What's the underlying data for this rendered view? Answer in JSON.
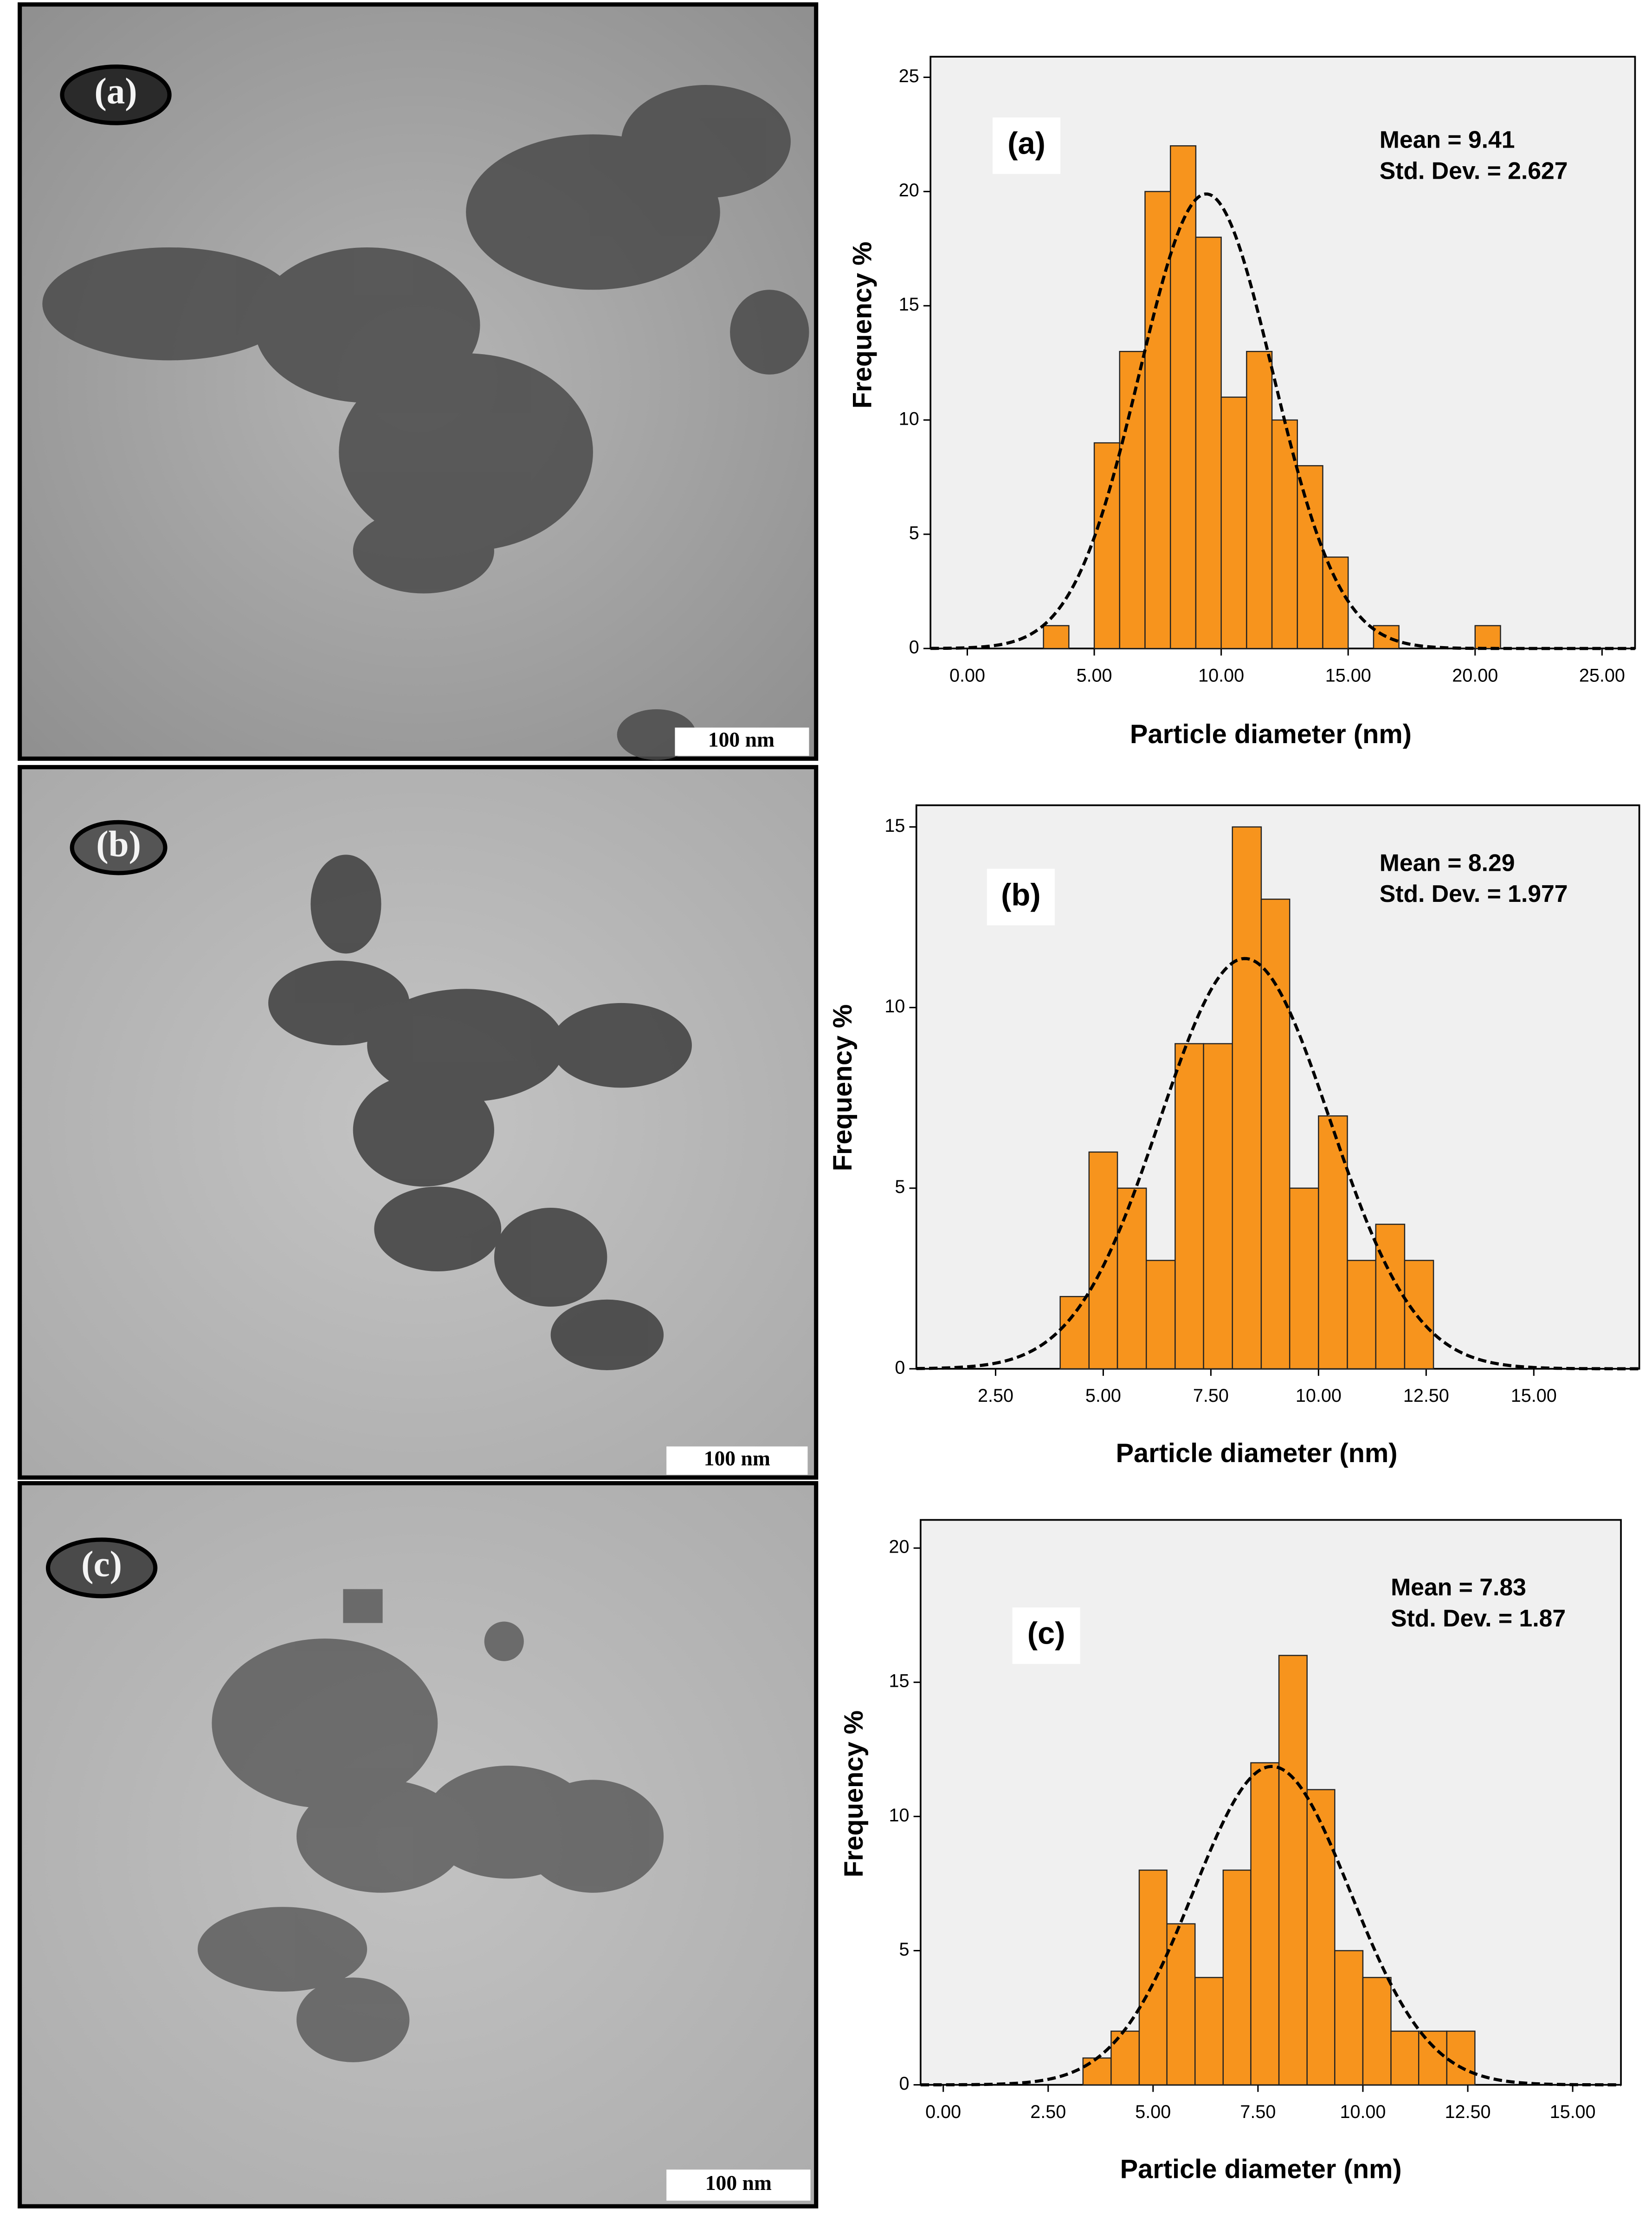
{
  "images": [
    {
      "label": "(a)",
      "scale_bar": "100 nm"
    },
    {
      "label": "(b)",
      "scale_bar": "100 nm"
    },
    {
      "label": "(c)",
      "scale_bar": "100 nm"
    }
  ],
  "chart_data": [
    {
      "type": "histogram",
      "panel_label": "(a)",
      "x_label": "Particle diameter (nm)",
      "y_label": "Frequency %",
      "stats": [
        "Mean = 9.41",
        "Std. Dev. = 2.627"
      ],
      "fit": {
        "mean": 9.41,
        "std": 2.627
      },
      "bins": [
        3,
        4,
        5,
        6,
        7,
        8,
        9,
        10,
        11,
        12,
        13,
        14,
        15,
        16,
        17,
        18,
        19,
        20,
        21
      ],
      "values": [
        1,
        0,
        9,
        13,
        20,
        22,
        18,
        11,
        13,
        10,
        8,
        4,
        0,
        1,
        0,
        0,
        0,
        1
      ],
      "color": "#f7941d",
      "xlim": [
        -1.45,
        26.3
      ],
      "ylim": [
        0,
        25.9
      ],
      "xticks": [
        {
          "value": 0,
          "label": "0.00"
        },
        {
          "value": 5,
          "label": "5.00"
        },
        {
          "value": 10,
          "label": "10.00"
        },
        {
          "value": 15,
          "label": "15.00"
        },
        {
          "value": 20,
          "label": "20.00"
        },
        {
          "value": 25,
          "label": "25.00"
        }
      ],
      "yticks": [
        0,
        5,
        10,
        15,
        20,
        25
      ]
    },
    {
      "type": "histogram",
      "panel_label": "(b)",
      "x_label": "Particle diameter (nm)",
      "y_label": "Frequency %",
      "stats": [
        "Mean = 8.29",
        "Std. Dev. = 1.977"
      ],
      "fit": {
        "mean": 8.29,
        "std": 1.977
      },
      "bins": [
        4,
        4.67,
        5.33,
        6,
        6.67,
        7.33,
        8,
        8.67,
        9.33,
        10,
        10.67,
        11.33,
        12,
        12.67
      ],
      "values": [
        2,
        6,
        5,
        3,
        9,
        9,
        15,
        13,
        5,
        7,
        3,
        4,
        3
      ],
      "color": "#f7941d",
      "xlim": [
        0.66,
        17.45
      ],
      "ylim": [
        0,
        15.6
      ],
      "xticks": [
        {
          "value": 2.5,
          "label": "2.50"
        },
        {
          "value": 5,
          "label": "5.00"
        },
        {
          "value": 7.5,
          "label": "7.50"
        },
        {
          "value": 10,
          "label": "10.00"
        },
        {
          "value": 12.5,
          "label": "12.50"
        },
        {
          "value": 15,
          "label": "15.00"
        }
      ],
      "yticks": [
        0,
        5,
        10,
        15
      ]
    },
    {
      "type": "histogram",
      "panel_label": "(c)",
      "x_label": "Particle diameter (nm)",
      "y_label": "Frequency %",
      "stats": [
        "Mean = 7.83",
        "Std. Dev. = 1.87"
      ],
      "fit": {
        "mean": 7.83,
        "std": 1.87
      },
      "bins": [
        3.33,
        4,
        4.67,
        5.33,
        6,
        6.67,
        7.33,
        8,
        8.67,
        9.33,
        10,
        10.67,
        11.33,
        12,
        12.67
      ],
      "values": [
        1,
        2,
        8,
        6,
        4,
        8,
        12,
        16,
        11,
        5,
        4,
        2,
        2,
        2
      ],
      "color": "#f7941d",
      "xlim": [
        -0.54,
        16.15
      ],
      "ylim": [
        0,
        21.05
      ],
      "xticks": [
        {
          "value": 0,
          "label": "0.00"
        },
        {
          "value": 2.5,
          "label": "2.50"
        },
        {
          "value": 5,
          "label": "5.00"
        },
        {
          "value": 7.5,
          "label": "7.50"
        },
        {
          "value": 10,
          "label": "10.00"
        },
        {
          "value": 12.5,
          "label": "12.50"
        },
        {
          "value": 15,
          "label": "15.00"
        }
      ],
      "yticks": [
        0,
        5,
        10,
        15,
        20
      ]
    }
  ]
}
